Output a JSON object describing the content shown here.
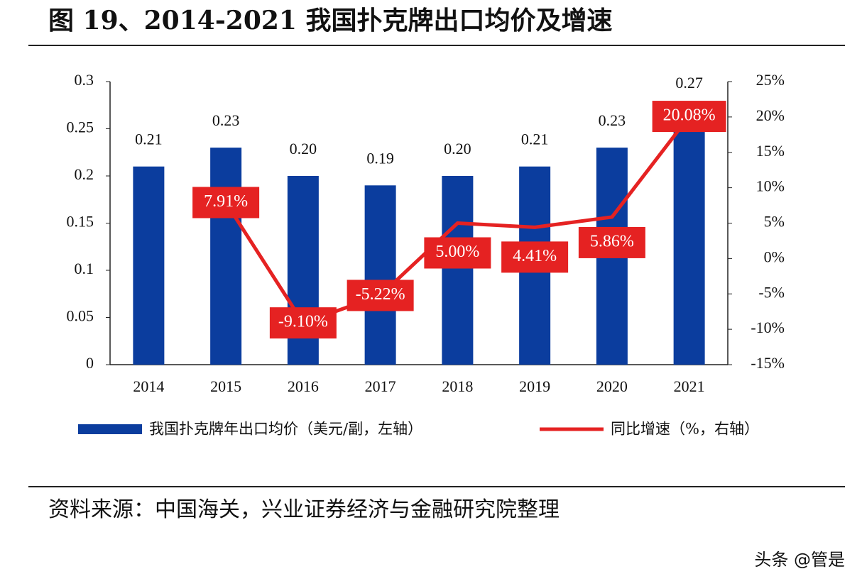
{
  "chart_data": {
    "type": "bar_line",
    "title": "图 19、2014-2021 我国扑克牌出口均价及增速",
    "categories": [
      "2014",
      "2015",
      "2016",
      "2017",
      "2018",
      "2019",
      "2020",
      "2021"
    ],
    "series": [
      {
        "name": "我国扑克牌年出口均价（美元/副，左轴）",
        "type": "bar",
        "color": "#0b3d9e",
        "values": [
          0.21,
          0.23,
          0.2,
          0.19,
          0.2,
          0.21,
          0.23,
          0.27
        ],
        "value_labels": [
          "0.21",
          "0.23",
          "0.20",
          "0.19",
          "0.20",
          "0.21",
          "0.23",
          "0.27"
        ]
      },
      {
        "name": "同比增速（%，右轴）",
        "type": "line",
        "axis": "y2",
        "color": "#e52222",
        "values": [
          null,
          7.91,
          -9.1,
          -5.22,
          5.0,
          4.41,
          5.86,
          20.08
        ],
        "value_labels": [
          null,
          "7.91%",
          "-9.10%",
          "-5.22%",
          "5.00%",
          "4.41%",
          "5.86%",
          "20.08%"
        ]
      }
    ],
    "ylim": [
      0,
      0.3
    ],
    "yticks": [
      0,
      0.05,
      0.1,
      0.15,
      0.2,
      0.25,
      0.3
    ],
    "y2lim": [
      -15,
      25
    ],
    "y2ticks": [
      {
        "value": -15,
        "label": "-15%"
      },
      {
        "value": -10,
        "label": "-10%"
      },
      {
        "value": -5,
        "label": "-5%"
      },
      {
        "value": 0,
        "label": "0%"
      },
      {
        "value": 5,
        "label": "5%"
      },
      {
        "value": 10,
        "label": "10%"
      },
      {
        "value": 15,
        "label": "15%"
      },
      {
        "value": 20,
        "label": "20%"
      },
      {
        "value": 25,
        "label": "25%"
      }
    ],
    "source": "资料来源：中国海关，兴业证券经济与金融研究院整理",
    "watermark": "头条 @管是"
  }
}
